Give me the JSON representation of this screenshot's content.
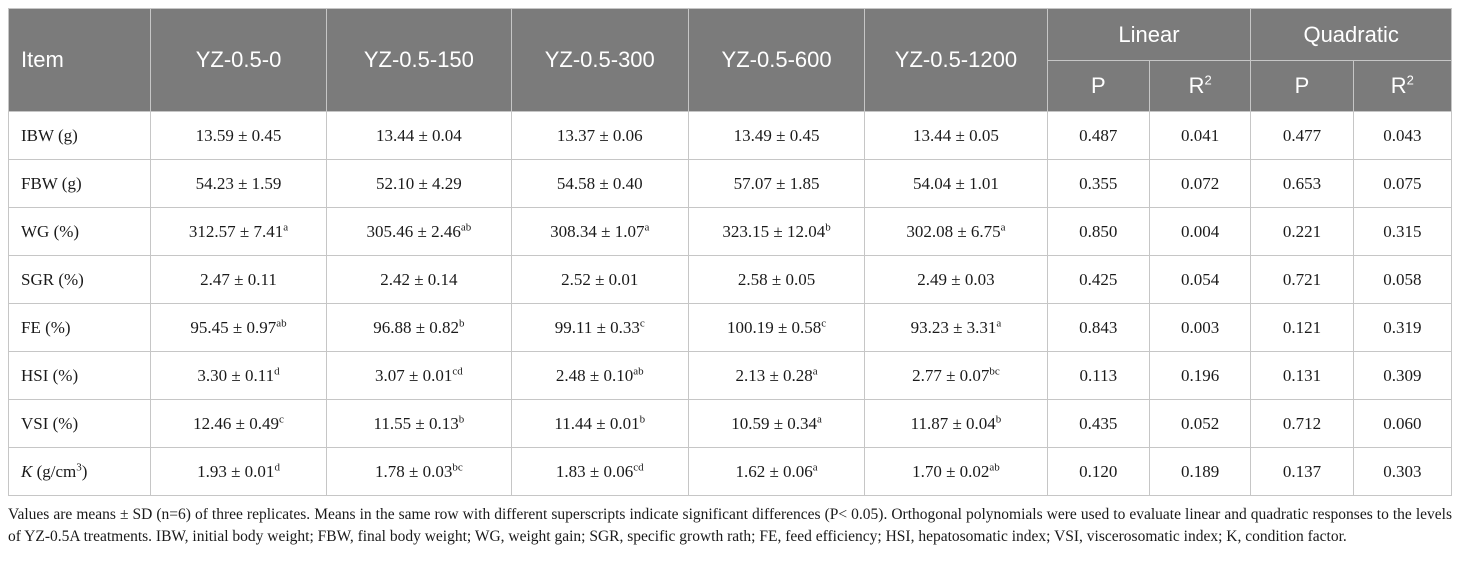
{
  "header": {
    "item": "Item",
    "groups": [
      "YZ-0.5-0",
      "YZ-0.5-150",
      "YZ-0.5-300",
      "YZ-0.5-600",
      "YZ-0.5-1200"
    ],
    "linear": "Linear",
    "quadratic": "Quadratic",
    "sub": {
      "lin_p": "P",
      "lin_r_base": "R",
      "lin_r_sup": "2",
      "quad_p": "P",
      "quad_r_base": "R",
      "quad_r_sup": "2"
    }
  },
  "rows": [
    {
      "item_main": "IBW (g)",
      "item_italic": "",
      "item_sup": "",
      "item_tail": "",
      "cells": [
        {
          "v": "13.59 ± 0.45",
          "s": ""
        },
        {
          "v": "13.44 ± 0.04",
          "s": ""
        },
        {
          "v": "13.37 ± 0.06",
          "s": ""
        },
        {
          "v": "13.49 ± 0.45",
          "s": ""
        },
        {
          "v": "13.44 ± 0.05",
          "s": ""
        }
      ],
      "lin_p": "0.487",
      "lin_r2": "0.041",
      "quad_p": "0.477",
      "quad_r2": "0.043"
    },
    {
      "item_main": "FBW (g)",
      "item_italic": "",
      "item_sup": "",
      "item_tail": "",
      "cells": [
        {
          "v": "54.23 ± 1.59",
          "s": ""
        },
        {
          "v": "52.10 ± 4.29",
          "s": ""
        },
        {
          "v": "54.58 ± 0.40",
          "s": ""
        },
        {
          "v": "57.07 ± 1.85",
          "s": ""
        },
        {
          "v": "54.04 ± 1.01",
          "s": ""
        }
      ],
      "lin_p": "0.355",
      "lin_r2": "0.072",
      "quad_p": "0.653",
      "quad_r2": "0.075"
    },
    {
      "item_main": "WG (%)",
      "item_italic": "",
      "item_sup": "",
      "item_tail": "",
      "cells": [
        {
          "v": "312.57 ± 7.41",
          "s": "a"
        },
        {
          "v": "305.46 ± 2.46",
          "s": "ab"
        },
        {
          "v": "308.34 ± 1.07",
          "s": "a"
        },
        {
          "v": "323.15 ± 12.04",
          "s": "b"
        },
        {
          "v": "302.08 ± 6.75",
          "s": "a"
        }
      ],
      "lin_p": "0.850",
      "lin_r2": "0.004",
      "quad_p": "0.221",
      "quad_r2": "0.315"
    },
    {
      "item_main": "SGR (%)",
      "item_italic": "",
      "item_sup": "",
      "item_tail": "",
      "cells": [
        {
          "v": "2.47 ± 0.11",
          "s": ""
        },
        {
          "v": "2.42 ± 0.14",
          "s": ""
        },
        {
          "v": "2.52 ± 0.01",
          "s": ""
        },
        {
          "v": "2.58 ± 0.05",
          "s": ""
        },
        {
          "v": "2.49 ± 0.03",
          "s": ""
        }
      ],
      "lin_p": "0.425",
      "lin_r2": "0.054",
      "quad_p": "0.721",
      "quad_r2": "0.058"
    },
    {
      "item_main": "FE (%)",
      "item_italic": "",
      "item_sup": "",
      "item_tail": "",
      "cells": [
        {
          "v": "95.45 ± 0.97",
          "s": "ab"
        },
        {
          "v": "96.88 ± 0.82",
          "s": "b"
        },
        {
          "v": "99.11 ± 0.33",
          "s": "c"
        },
        {
          "v": "100.19 ± 0.58",
          "s": "c"
        },
        {
          "v": "93.23 ± 3.31",
          "s": "a"
        }
      ],
      "lin_p": "0.843",
      "lin_r2": "0.003",
      "quad_p": "0.121",
      "quad_r2": "0.319"
    },
    {
      "item_main": "HSI (%)",
      "item_italic": "",
      "item_sup": "",
      "item_tail": "",
      "cells": [
        {
          "v": "3.30 ± 0.11",
          "s": "d"
        },
        {
          "v": "3.07 ± 0.01",
          "s": "cd"
        },
        {
          "v": "2.48 ± 0.10",
          "s": "ab"
        },
        {
          "v": "2.13 ± 0.28",
          "s": "a"
        },
        {
          "v": "2.77 ± 0.07",
          "s": "bc"
        }
      ],
      "lin_p": "0.113",
      "lin_r2": "0.196",
      "quad_p": "0.131",
      "quad_r2": "0.309"
    },
    {
      "item_main": "VSI (%)",
      "item_italic": "",
      "item_sup": "",
      "item_tail": "",
      "cells": [
        {
          "v": "12.46 ± 0.49",
          "s": "c"
        },
        {
          "v": "11.55 ± 0.13",
          "s": "b"
        },
        {
          "v": "11.44 ± 0.01",
          "s": "b"
        },
        {
          "v": "10.59 ± 0.34",
          "s": "a"
        },
        {
          "v": "11.87 ± 0.04",
          "s": "b"
        }
      ],
      "lin_p": "0.435",
      "lin_r2": "0.052",
      "quad_p": "0.712",
      "quad_r2": "0.060"
    },
    {
      "item_main": " (g/cm",
      "item_italic": "K",
      "item_sup": "3",
      "item_tail": ")",
      "cells": [
        {
          "v": "1.93 ± 0.01",
          "s": "d"
        },
        {
          "v": "1.78 ± 0.03",
          "s": "bc"
        },
        {
          "v": "1.83 ± 0.06",
          "s": "cd"
        },
        {
          "v": "1.62 ± 0.06",
          "s": "a"
        },
        {
          "v": "1.70 ± 0.02",
          "s": "ab"
        }
      ],
      "lin_p": "0.120",
      "lin_r2": "0.189",
      "quad_p": "0.137",
      "quad_r2": "0.303"
    }
  ],
  "footnote": "Values are means ± SD (n=6) of three replicates. Means in the same row with different superscripts indicate significant differences (P< 0.05). Orthogonal polynomials were used to evaluate linear and quadratic responses to the levels of YZ-0.5A treatments. IBW, initial body weight; FBW, final body weight; WG, weight gain; SGR, specific growth rath; FE, feed efficiency; HSI, hepatosomatic index; VSI, viscerosomatic index; K, condition factor.",
  "colors": {
    "header_bg": "#7b7b7b",
    "header_text": "#ffffff",
    "border": "#c6c6c6",
    "body_text": "#1a1a1a"
  }
}
